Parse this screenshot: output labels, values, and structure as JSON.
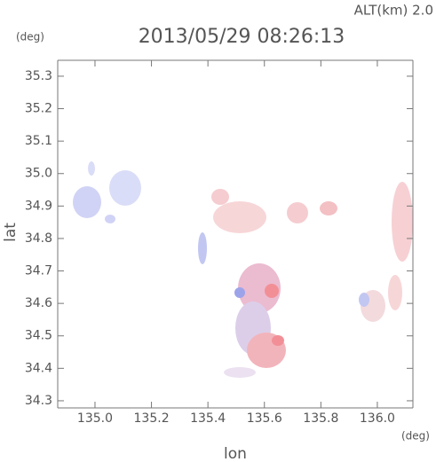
{
  "chart_data": {
    "type": "map",
    "title": "2013/05/29 08:26:13",
    "annotation": "ALT(km) 2.0",
    "y_unit": "(deg)",
    "x_unit": "(deg)",
    "xlabel": "lon",
    "ylabel": "lat",
    "xlim": [
      134.868,
      136.126
    ],
    "ylim": [
      34.278,
      35.349
    ],
    "xticks": [
      {
        "value": 135.0,
        "label": "135.0"
      },
      135.2,
      135.4,
      135.6,
      135.8,
      {
        "value": 136.0,
        "label": "136.0"
      }
    ],
    "yticks": [
      34.3,
      34.4,
      34.5,
      34.6,
      34.7,
      34.8,
      34.9,
      {
        "value": 35.0,
        "label": "35.0"
      },
      35.1,
      35.2,
      35.3
    ]
  }
}
